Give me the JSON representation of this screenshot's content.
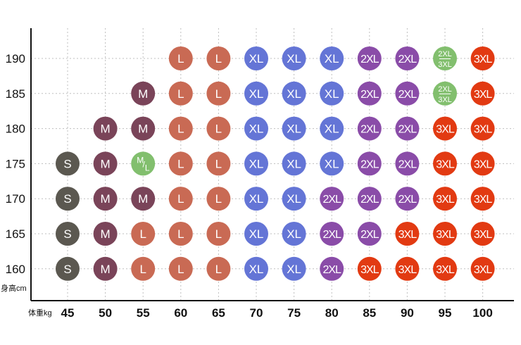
{
  "chart_data": {
    "type": "table",
    "title": "",
    "xlabel": "体重kg",
    "ylabel": "身高cm",
    "x": [
      45,
      50,
      55,
      60,
      65,
      70,
      75,
      80,
      85,
      90,
      95,
      100
    ],
    "y": [
      190,
      185,
      180,
      175,
      170,
      165,
      160
    ],
    "grid": true,
    "legend": "none",
    "size_colors": {
      "S": "#5b5850",
      "M": "#7a4459",
      "M/L": "#82bf6e",
      "L": "#c96a54",
      "XL": "#6475d6",
      "2XL": "#8a4ca8",
      "2XL/3XL": "#82bf6e",
      "3XL": "#e23a12"
    },
    "cells": [
      {
        "height": 190,
        "weight": 60,
        "size": "L"
      },
      {
        "height": 190,
        "weight": 65,
        "size": "L"
      },
      {
        "height": 190,
        "weight": 70,
        "size": "XL"
      },
      {
        "height": 190,
        "weight": 75,
        "size": "XL"
      },
      {
        "height": 190,
        "weight": 80,
        "size": "XL"
      },
      {
        "height": 190,
        "weight": 85,
        "size": "2XL"
      },
      {
        "height": 190,
        "weight": 90,
        "size": "2XL"
      },
      {
        "height": 190,
        "weight": 95,
        "size": "2XL/3XL"
      },
      {
        "height": 190,
        "weight": 100,
        "size": "3XL"
      },
      {
        "height": 185,
        "weight": 55,
        "size": "M"
      },
      {
        "height": 185,
        "weight": 60,
        "size": "L"
      },
      {
        "height": 185,
        "weight": 65,
        "size": "L"
      },
      {
        "height": 185,
        "weight": 70,
        "size": "XL"
      },
      {
        "height": 185,
        "weight": 75,
        "size": "XL"
      },
      {
        "height": 185,
        "weight": 80,
        "size": "XL"
      },
      {
        "height": 185,
        "weight": 85,
        "size": "2XL"
      },
      {
        "height": 185,
        "weight": 90,
        "size": "2XL"
      },
      {
        "height": 185,
        "weight": 95,
        "size": "2XL/3XL"
      },
      {
        "height": 185,
        "weight": 100,
        "size": "3XL"
      },
      {
        "height": 180,
        "weight": 50,
        "size": "M"
      },
      {
        "height": 180,
        "weight": 55,
        "size": "M"
      },
      {
        "height": 180,
        "weight": 60,
        "size": "L"
      },
      {
        "height": 180,
        "weight": 65,
        "size": "L"
      },
      {
        "height": 180,
        "weight": 70,
        "size": "XL"
      },
      {
        "height": 180,
        "weight": 75,
        "size": "XL"
      },
      {
        "height": 180,
        "weight": 80,
        "size": "XL"
      },
      {
        "height": 180,
        "weight": 85,
        "size": "2XL"
      },
      {
        "height": 180,
        "weight": 90,
        "size": "2XL"
      },
      {
        "height": 180,
        "weight": 95,
        "size": "3XL"
      },
      {
        "height": 180,
        "weight": 100,
        "size": "3XL"
      },
      {
        "height": 175,
        "weight": 45,
        "size": "S"
      },
      {
        "height": 175,
        "weight": 50,
        "size": "M"
      },
      {
        "height": 175,
        "weight": 55,
        "size": "M/L"
      },
      {
        "height": 175,
        "weight": 60,
        "size": "L"
      },
      {
        "height": 175,
        "weight": 65,
        "size": "L"
      },
      {
        "height": 175,
        "weight": 70,
        "size": "XL"
      },
      {
        "height": 175,
        "weight": 75,
        "size": "XL"
      },
      {
        "height": 175,
        "weight": 80,
        "size": "XL"
      },
      {
        "height": 175,
        "weight": 85,
        "size": "2XL"
      },
      {
        "height": 175,
        "weight": 90,
        "size": "2XL"
      },
      {
        "height": 175,
        "weight": 95,
        "size": "3XL"
      },
      {
        "height": 175,
        "weight": 100,
        "size": "3XL"
      },
      {
        "height": 170,
        "weight": 45,
        "size": "S"
      },
      {
        "height": 170,
        "weight": 50,
        "size": "M"
      },
      {
        "height": 170,
        "weight": 55,
        "size": "M"
      },
      {
        "height": 170,
        "weight": 60,
        "size": "L"
      },
      {
        "height": 170,
        "weight": 65,
        "size": "L"
      },
      {
        "height": 170,
        "weight": 70,
        "size": "XL"
      },
      {
        "height": 170,
        "weight": 75,
        "size": "XL"
      },
      {
        "height": 170,
        "weight": 80,
        "size": "2XL"
      },
      {
        "height": 170,
        "weight": 85,
        "size": "2XL"
      },
      {
        "height": 170,
        "weight": 90,
        "size": "2XL"
      },
      {
        "height": 170,
        "weight": 95,
        "size": "3XL"
      },
      {
        "height": 170,
        "weight": 100,
        "size": "3XL"
      },
      {
        "height": 165,
        "weight": 45,
        "size": "S"
      },
      {
        "height": 165,
        "weight": 50,
        "size": "M"
      },
      {
        "height": 165,
        "weight": 55,
        "size": "L"
      },
      {
        "height": 165,
        "weight": 60,
        "size": "L"
      },
      {
        "height": 165,
        "weight": 65,
        "size": "L"
      },
      {
        "height": 165,
        "weight": 70,
        "size": "XL"
      },
      {
        "height": 165,
        "weight": 75,
        "size": "XL"
      },
      {
        "height": 165,
        "weight": 80,
        "size": "2XL"
      },
      {
        "height": 165,
        "weight": 85,
        "size": "2XL"
      },
      {
        "height": 165,
        "weight": 90,
        "size": "3XL"
      },
      {
        "height": 165,
        "weight": 95,
        "size": "3XL"
      },
      {
        "height": 165,
        "weight": 100,
        "size": "3XL"
      },
      {
        "height": 160,
        "weight": 45,
        "size": "S"
      },
      {
        "height": 160,
        "weight": 50,
        "size": "M"
      },
      {
        "height": 160,
        "weight": 55,
        "size": "L"
      },
      {
        "height": 160,
        "weight": 60,
        "size": "L"
      },
      {
        "height": 160,
        "weight": 65,
        "size": "L"
      },
      {
        "height": 160,
        "weight": 70,
        "size": "XL"
      },
      {
        "height": 160,
        "weight": 75,
        "size": "XL"
      },
      {
        "height": 160,
        "weight": 80,
        "size": "2XL"
      },
      {
        "height": 160,
        "weight": 85,
        "size": "3XL"
      },
      {
        "height": 160,
        "weight": 90,
        "size": "3XL"
      },
      {
        "height": 160,
        "weight": 95,
        "size": "3XL"
      },
      {
        "height": 160,
        "weight": 100,
        "size": "3XL"
      }
    ]
  }
}
